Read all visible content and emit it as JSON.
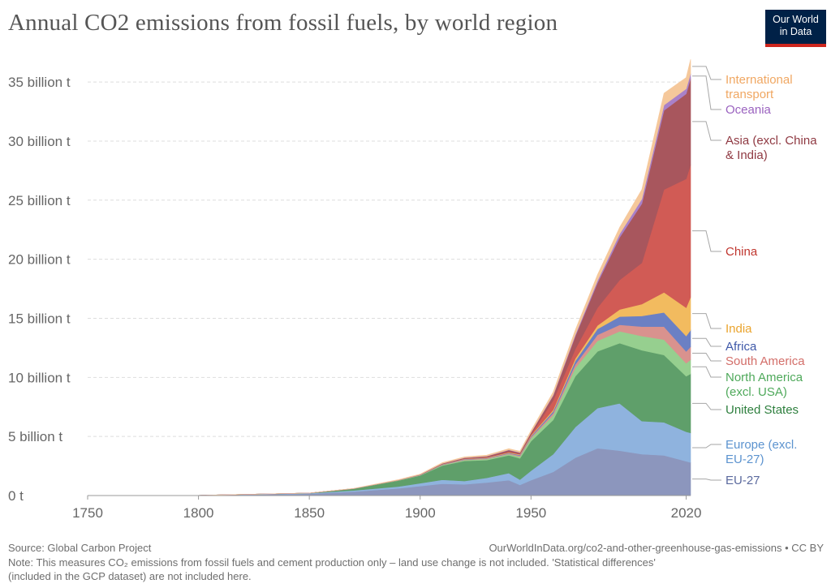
{
  "header": {
    "title_pre": "Annual CO",
    "title_sub": "2",
    "title_post": " emissions from fossil fuels, by world region",
    "logo_line1": "Our World",
    "logo_line2": "in Data"
  },
  "footer": {
    "source": "Source: Global Carbon Project",
    "link": "OurWorldInData.org/co2-and-other-greenhouse-gas-emissions • CC BY",
    "note_line1": "Note: This measures CO₂ emissions from fossil fuels and cement production only – land use change is not included. 'Statistical differences'",
    "note_line2": "(included in the GCP dataset) are not included here."
  },
  "chart_data": {
    "type": "area",
    "stacked": true,
    "title": "Annual CO₂ emissions from fossil fuels, by world region",
    "x": [
      1750,
      1800,
      1850,
      1870,
      1890,
      1900,
      1910,
      1920,
      1930,
      1940,
      1945,
      1950,
      1960,
      1970,
      1980,
      1990,
      2000,
      2010,
      2020,
      2022
    ],
    "xlim": [
      1750,
      2022
    ],
    "ylim": [
      0,
      37000000000
    ],
    "xticks": [
      1750,
      1800,
      1850,
      1900,
      1950,
      2020
    ],
    "yticks": [
      0,
      5000000000,
      10000000000,
      15000000000,
      20000000000,
      25000000000,
      30000000000,
      35000000000
    ],
    "ytick_labels": [
      "0 t",
      "5 billion t",
      "10 billion t",
      "15 billion t",
      "20 billion t",
      "25 billion t",
      "30 billion t",
      "35 billion t"
    ],
    "grid": true,
    "legend": "right, inline labels",
    "series": [
      {
        "name": "EU-27",
        "color": "#8c96bd",
        "values": [
          9000000,
          18000000,
          150000000,
          330000000,
          600000000,
          800000000,
          1000000000,
          950000000,
          1100000000,
          1300000000,
          900000000,
          1300000000,
          2000000000,
          3200000000,
          4000000000,
          3800000000,
          3500000000,
          3400000000,
          2900000000,
          2800000000
        ]
      },
      {
        "name": "Europe (excl. EU-27)",
        "color": "#8fb3de",
        "values": [
          0,
          0,
          40000000,
          100000000,
          160000000,
          240000000,
          330000000,
          280000000,
          400000000,
          600000000,
          450000000,
          800000000,
          1500000000,
          2600000000,
          3400000000,
          4000000000,
          2800000000,
          2800000000,
          2500000000,
          2500000000
        ]
      },
      {
        "name": "United States",
        "color": "#5f9f6a",
        "values": [
          0,
          0,
          20000000,
          150000000,
          500000000,
          650000000,
          1200000000,
          1700000000,
          1500000000,
          1500000000,
          1800000000,
          2500000000,
          2900000000,
          4300000000,
          4800000000,
          5100000000,
          6000000000,
          5700000000,
          4700000000,
          5000000000
        ]
      },
      {
        "name": "North America (excl. USA)",
        "color": "#96cf8f",
        "values": [
          0,
          0,
          0,
          5000000,
          20000000,
          30000000,
          60000000,
          80000000,
          90000000,
          100000000,
          150000000,
          250000000,
          400000000,
          700000000,
          900000000,
          1000000000,
          1200000000,
          1300000000,
          1100000000,
          1200000000
        ]
      },
      {
        "name": "South America",
        "color": "#d9928e",
        "values": [
          0,
          0,
          0,
          0,
          5000000,
          10000000,
          30000000,
          40000000,
          50000000,
          60000000,
          80000000,
          100000000,
          180000000,
          300000000,
          500000000,
          550000000,
          800000000,
          1100000000,
          1000000000,
          1100000000
        ]
      },
      {
        "name": "Africa",
        "color": "#6b80c4",
        "values": [
          0,
          0,
          0,
          0,
          5000000,
          10000000,
          25000000,
          30000000,
          40000000,
          50000000,
          60000000,
          80000000,
          150000000,
          300000000,
          500000000,
          700000000,
          900000000,
          1200000000,
          1300000000,
          1400000000
        ]
      },
      {
        "name": "India",
        "color": "#f2bb5f",
        "values": [
          0,
          0,
          0,
          0,
          5000000,
          10000000,
          20000000,
          30000000,
          30000000,
          40000000,
          50000000,
          60000000,
          120000000,
          200000000,
          300000000,
          600000000,
          1000000000,
          1700000000,
          2400000000,
          2800000000
        ]
      },
      {
        "name": "China",
        "color": "#d15b55",
        "values": [
          0,
          0,
          0,
          0,
          0,
          0,
          10000000,
          20000000,
          30000000,
          50000000,
          40000000,
          80000000,
          800000000,
          800000000,
          1500000000,
          2500000000,
          3500000000,
          8700000000,
          10900000000,
          11200000000
        ]
      },
      {
        "name": "Asia (excl. China & India)",
        "color": "#a8565d",
        "values": [
          0,
          0,
          0,
          5000000,
          10000000,
          20000000,
          40000000,
          60000000,
          80000000,
          150000000,
          100000000,
          150000000,
          400000000,
          1100000000,
          2100000000,
          3600000000,
          5000000000,
          6700000000,
          7200000000,
          7300000000
        ]
      },
      {
        "name": "Oceania",
        "color": "#a981c9",
        "values": [
          0,
          0,
          0,
          2000000,
          5000000,
          8000000,
          10000000,
          15000000,
          20000000,
          25000000,
          25000000,
          30000000,
          60000000,
          120000000,
          200000000,
          300000000,
          400000000,
          450000000,
          430000000,
          420000000
        ]
      },
      {
        "name": "International transport",
        "color": "#f5c89b",
        "values": [
          0,
          0,
          0,
          10000000,
          30000000,
          40000000,
          60000000,
          70000000,
          80000000,
          90000000,
          100000000,
          150000000,
          250000000,
          400000000,
          500000000,
          550000000,
          800000000,
          1000000000,
          950000000,
          1200000000
        ]
      }
    ],
    "labels": [
      {
        "series": "International transport",
        "lines": [
          "International",
          "transport"
        ],
        "color": "#f0a762",
        "top": 89
      },
      {
        "series": "Oceania",
        "lines": [
          "Oceania"
        ],
        "color": "#9a62bf",
        "top": 126
      },
      {
        "series": "Asia (excl. China & India)",
        "lines": [
          "Asia (excl. China",
          "& India)"
        ],
        "color": "#8f3942",
        "top": 164
      },
      {
        "series": "China",
        "lines": [
          "China"
        ],
        "color": "#c0362f",
        "top": 301
      },
      {
        "series": "India",
        "lines": [
          "India"
        ],
        "color": "#eaa42e",
        "top": 396
      },
      {
        "series": "Africa",
        "lines": [
          "Africa"
        ],
        "color": "#3e58a8",
        "top": 418
      },
      {
        "series": "South America",
        "lines": [
          "South America"
        ],
        "color": "#d36e69",
        "top": 436
      },
      {
        "series": "North America (excl. USA)",
        "lines": [
          "North America",
          "(excl. USA)"
        ],
        "color": "#4fa95b",
        "top": 456
      },
      {
        "series": "United States",
        "lines": [
          "United States"
        ],
        "color": "#2e7f3e",
        "top": 496
      },
      {
        "series": "Europe (excl. EU-27)",
        "lines": [
          "Europe (excl.",
          "EU-27)"
        ],
        "color": "#5c93cf",
        "top": 539
      },
      {
        "series": "EU-27",
        "lines": [
          "EU-27"
        ],
        "color": "#5b6a9e",
        "top": 583
      }
    ]
  }
}
